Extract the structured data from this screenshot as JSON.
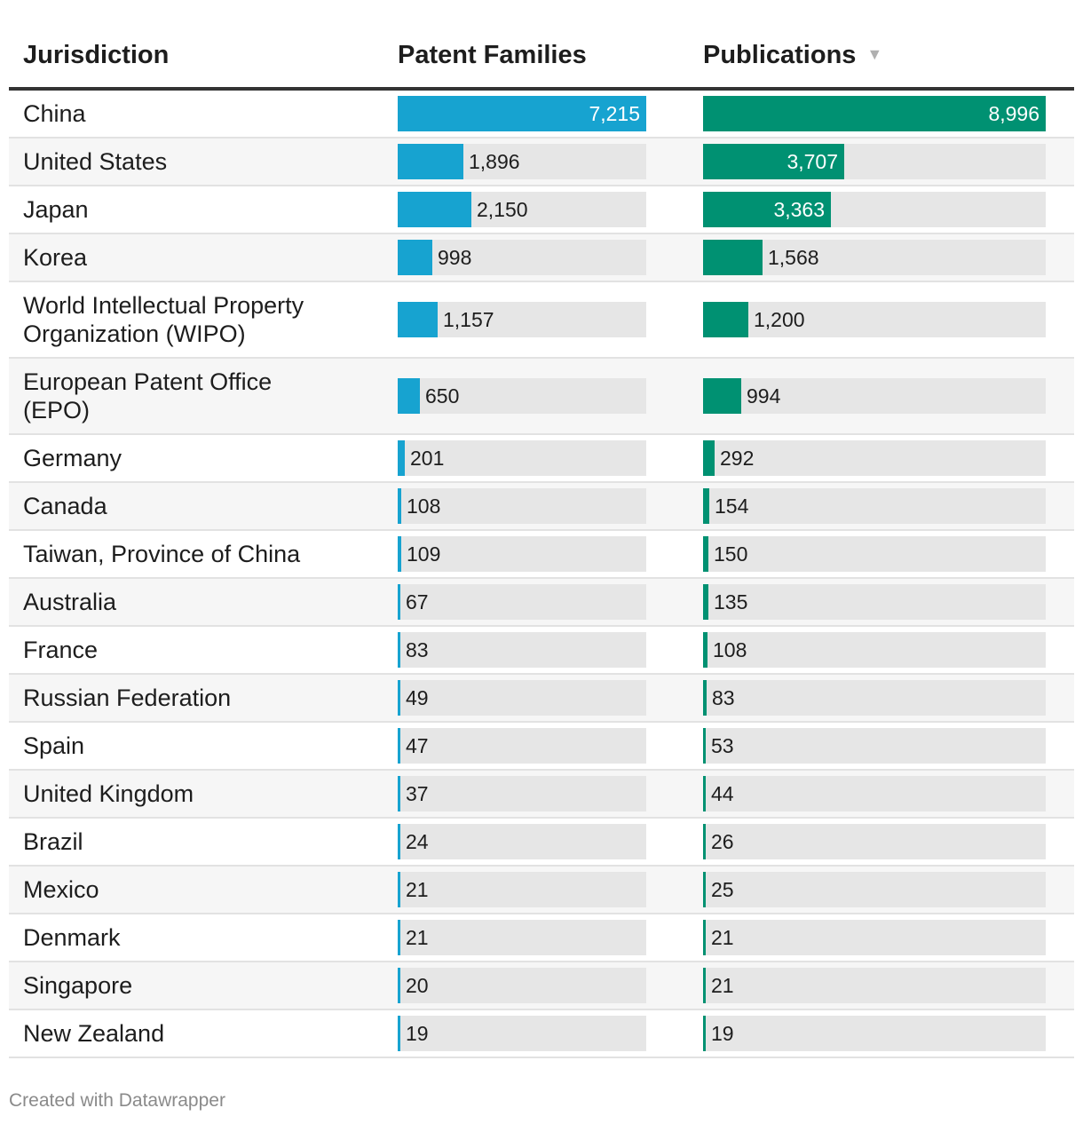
{
  "chart_data": {
    "type": "table",
    "columns": [
      "Jurisdiction",
      "Patent Families",
      "Publications"
    ],
    "sorted_by": "Publications",
    "sort_order": "descending",
    "series": [
      {
        "name": "Patent Families",
        "color": "#17a3d0",
        "max": 7215
      },
      {
        "name": "Publications",
        "color": "#009172",
        "max": 8996
      }
    ],
    "rows": [
      {
        "jurisdiction": "China",
        "patent_families": 7215,
        "patent_families_label": "7,215",
        "publications": 8996,
        "publications_label": "8,996"
      },
      {
        "jurisdiction": "United States",
        "patent_families": 1896,
        "patent_families_label": "1,896",
        "publications": 3707,
        "publications_label": "3,707"
      },
      {
        "jurisdiction": "Japan",
        "patent_families": 2150,
        "patent_families_label": "2,150",
        "publications": 3363,
        "publications_label": "3,363"
      },
      {
        "jurisdiction": "Korea",
        "patent_families": 998,
        "patent_families_label": "998",
        "publications": 1568,
        "publications_label": "1,568"
      },
      {
        "jurisdiction": "World Intellectual Property Organization (WIPO)",
        "patent_families": 1157,
        "patent_families_label": "1,157",
        "publications": 1200,
        "publications_label": "1,200"
      },
      {
        "jurisdiction": "European Patent Office (EPO)",
        "patent_families": 650,
        "patent_families_label": "650",
        "publications": 994,
        "publications_label": "994"
      },
      {
        "jurisdiction": "Germany",
        "patent_families": 201,
        "patent_families_label": "201",
        "publications": 292,
        "publications_label": "292"
      },
      {
        "jurisdiction": "Canada",
        "patent_families": 108,
        "patent_families_label": "108",
        "publications": 154,
        "publications_label": "154"
      },
      {
        "jurisdiction": "Taiwan, Province of China",
        "patent_families": 109,
        "patent_families_label": "109",
        "publications": 150,
        "publications_label": "150"
      },
      {
        "jurisdiction": "Australia",
        "patent_families": 67,
        "patent_families_label": "67",
        "publications": 135,
        "publications_label": "135"
      },
      {
        "jurisdiction": "France",
        "patent_families": 83,
        "patent_families_label": "83",
        "publications": 108,
        "publications_label": "108"
      },
      {
        "jurisdiction": "Russian Federation",
        "patent_families": 49,
        "patent_families_label": "49",
        "publications": 83,
        "publications_label": "83"
      },
      {
        "jurisdiction": "Spain",
        "patent_families": 47,
        "patent_families_label": "47",
        "publications": 53,
        "publications_label": "53"
      },
      {
        "jurisdiction": "United Kingdom",
        "patent_families": 37,
        "patent_families_label": "37",
        "publications": 44,
        "publications_label": "44"
      },
      {
        "jurisdiction": "Brazil",
        "patent_families": 24,
        "patent_families_label": "24",
        "publications": 26,
        "publications_label": "26"
      },
      {
        "jurisdiction": "Mexico",
        "patent_families": 21,
        "patent_families_label": "21",
        "publications": 25,
        "publications_label": "25"
      },
      {
        "jurisdiction": "Denmark",
        "patent_families": 21,
        "patent_families_label": "21",
        "publications": 21,
        "publications_label": "21"
      },
      {
        "jurisdiction": "Singapore",
        "patent_families": 20,
        "patent_families_label": "20",
        "publications": 21,
        "publications_label": "21"
      },
      {
        "jurisdiction": "New Zealand",
        "patent_families": 19,
        "patent_families_label": "19",
        "publications": 19,
        "publications_label": "19"
      }
    ]
  },
  "header": {
    "jurisdiction": "Jurisdiction",
    "patent_families": "Patent Families",
    "publications": "Publications",
    "sort_arrow": "▼"
  },
  "footer": {
    "credit": "Created with Datawrapper"
  }
}
